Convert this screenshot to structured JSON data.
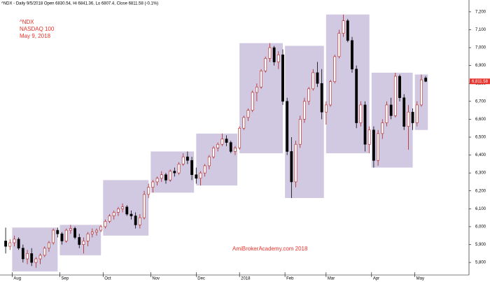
{
  "chart_data": {
    "type": "candlestick",
    "title": "^NDX - Daily 9/5/2018 Open 6830.54, Hi 6841.36, Lo 6807.4, Close 6811.58 (-0.1%)",
    "annotations": [
      "^NDX",
      "NASDAQ 100",
      "May 9, 2018"
    ],
    "watermark": "AmiBrokerAcademy.com  2018",
    "up_color": "#b22222",
    "down_color": "#000000",
    "range_color": "#c9bfdc",
    "x": [
      0,
      2,
      4,
      6,
      8,
      10,
      12,
      14,
      16,
      18,
      20,
      22,
      24,
      26,
      28,
      30,
      32,
      34,
      36,
      38,
      40,
      42,
      44,
      46,
      48,
      50,
      52,
      54,
      56,
      58,
      60,
      62,
      64,
      66,
      68,
      70,
      72,
      74,
      76,
      78,
      80,
      82,
      84,
      86,
      88,
      90,
      92,
      94,
      96,
      98,
      100,
      102,
      104,
      106,
      108,
      110,
      112,
      114,
      116,
      118,
      120,
      122,
      124,
      126,
      128,
      130,
      132,
      134,
      136,
      138,
      140,
      142,
      144,
      146,
      148,
      150,
      152,
      154,
      156,
      158,
      160,
      162,
      164,
      166,
      168,
      170,
      172,
      174,
      176,
      178,
      180,
      182,
      184,
      186,
      188,
      190,
      192,
      194
    ],
    "open": [
      5920,
      5890,
      5910,
      5930,
      5880,
      5820,
      5850,
      5800,
      5820,
      5840,
      5880,
      5910,
      5980,
      5960,
      5920,
      5980,
      5990,
      5940,
      5900,
      5920,
      5960,
      5970,
      5980,
      6000,
      6030,
      6060,
      6080,
      6100,
      6110,
      6070,
      6060,
      6010,
      6050,
      6180,
      6220,
      6250,
      6270,
      6290,
      6260,
      6310,
      6300,
      6350,
      6390,
      6370,
      6290,
      6270,
      6300,
      6340,
      6390,
      6440,
      6460,
      6490,
      6470,
      6420,
      6440,
      6550,
      6610,
      6650,
      6750,
      6780,
      6870,
      6940,
      7000,
      6920,
      6960,
      6700,
      6420,
      6250,
      6460,
      6600,
      6700,
      6770,
      6860,
      6800,
      6640,
      6680,
      6810,
      6950,
      7080,
      7150,
      7040,
      6880,
      6580,
      6680,
      6460,
      6540,
      6370,
      6520,
      6580,
      6680,
      6620,
      6840,
      6720,
      6560,
      6640,
      6580,
      6680,
      6830.54
    ],
    "high": [
      5995,
      5930,
      5950,
      5940,
      5900,
      5870,
      5880,
      5830,
      5850,
      5890,
      5920,
      5990,
      5995,
      5970,
      5990,
      6010,
      6000,
      5960,
      5940,
      5970,
      5990,
      5990,
      6010,
      6040,
      6070,
      6090,
      6110,
      6130,
      6120,
      6090,
      6080,
      6070,
      6200,
      6240,
      6260,
      6280,
      6310,
      6300,
      6320,
      6330,
      6360,
      6410,
      6420,
      6390,
      6330,
      6310,
      6350,
      6400,
      6450,
      6470,
      6520,
      6510,
      6480,
      6450,
      6560,
      6620,
      6660,
      6760,
      6800,
      6880,
      6950,
      7025,
      7010,
      6980,
      6990,
      6720,
      6500,
      6480,
      6620,
      6720,
      6780,
      6880,
      6920,
      6880,
      6700,
      6820,
      6960,
      7100,
      7185,
      7160,
      7060,
      6900,
      6700,
      6700,
      6560,
      6560,
      6540,
      6600,
      6700,
      6720,
      6860,
      6850,
      6740,
      6680,
      6660,
      6700,
      6850,
      6841.36
    ],
    "low": [
      5850,
      5870,
      5890,
      5870,
      5800,
      5790,
      5780,
      5770,
      5790,
      5830,
      5860,
      5900,
      5940,
      5900,
      5910,
      5960,
      5930,
      5880,
      5850,
      5890,
      5940,
      5950,
      5970,
      5990,
      6020,
      6040,
      6060,
      6080,
      6060,
      6040,
      5990,
      5990,
      6040,
      6160,
      6190,
      6230,
      6250,
      6240,
      6250,
      6280,
      6290,
      6340,
      6350,
      6260,
      6240,
      6230,
      6280,
      6320,
      6380,
      6420,
      6450,
      6450,
      6410,
      6400,
      6430,
      6540,
      6590,
      6640,
      6700,
      6770,
      6860,
      6920,
      6900,
      6880,
      6680,
      6400,
      6160,
      6220,
      6440,
      6580,
      6680,
      6760,
      6780,
      6600,
      6570,
      6670,
      6800,
      6940,
      7060,
      7030,
      6860,
      6550,
      6560,
      6420,
      6410,
      6330,
      6340,
      6490,
      6560,
      6600,
      6610,
      6700,
      6540,
      6430,
      6540,
      6560,
      6670,
      6807.4
    ],
    "close": [
      5890,
      5910,
      5930,
      5880,
      5820,
      5850,
      5800,
      5820,
      5840,
      5880,
      5910,
      5980,
      5960,
      5920,
      5980,
      5990,
      5940,
      5900,
      5920,
      5960,
      5970,
      5980,
      6000,
      6030,
      6060,
      6080,
      6100,
      6110,
      6070,
      6060,
      6010,
      6050,
      6180,
      6220,
      6250,
      6270,
      6290,
      6260,
      6310,
      6300,
      6350,
      6390,
      6370,
      6290,
      6270,
      6300,
      6340,
      6390,
      6440,
      6460,
      6490,
      6470,
      6420,
      6440,
      6550,
      6610,
      6650,
      6750,
      6780,
      6870,
      6940,
      7000,
      6920,
      6960,
      6700,
      6420,
      6250,
      6460,
      6600,
      6700,
      6770,
      6860,
      6800,
      6640,
      6680,
      6810,
      6950,
      7080,
      7150,
      7040,
      6880,
      6580,
      6680,
      6460,
      6540,
      6370,
      6520,
      6580,
      6680,
      6620,
      6840,
      6720,
      6560,
      6640,
      6580,
      6680,
      6820,
      6811.58
    ],
    "ranges": [
      {
        "x": [
          3,
          24
        ],
        "low": 5750,
        "high": 5995
      },
      {
        "x": [
          25,
          44
        ],
        "low": 5840,
        "high": 6010
      },
      {
        "x": [
          45,
          66
        ],
        "low": 5950,
        "high": 6260
      },
      {
        "x": [
          67,
          87
        ],
        "low": 6190,
        "high": 6420
      },
      {
        "x": [
          88,
          107
        ],
        "low": 6230,
        "high": 6520
      },
      {
        "x": [
          108,
          128
        ],
        "low": 6410,
        "high": 7025
      },
      {
        "x": [
          129,
          147
        ],
        "low": 6160,
        "high": 7010
      },
      {
        "x": [
          148,
          168
        ],
        "low": 6410,
        "high": 7185
      },
      {
        "x": [
          169,
          188
        ],
        "low": 6330,
        "high": 6860
      },
      {
        "x": [
          189,
          195
        ],
        "low": 6540,
        "high": 6850
      }
    ],
    "last_price": {
      "value": 6811.58,
      "label": "6,811.58"
    },
    "xlim": [
      -1,
      214
    ],
    "xticks": [
      {
        "value": 3,
        "label": "Aug"
      },
      {
        "value": 25,
        "label": "Sep"
      },
      {
        "value": 45,
        "label": "Oct"
      },
      {
        "value": 67,
        "label": "Nov"
      },
      {
        "value": 88,
        "label": "Dec"
      },
      {
        "value": 108,
        "label": "2018"
      },
      {
        "value": 129,
        "label": "Feb"
      },
      {
        "value": 148,
        "label": "Mar"
      },
      {
        "value": 169,
        "label": "Apr"
      },
      {
        "value": 189,
        "label": "May"
      }
    ],
    "ylim": [
      5730,
      7266
    ],
    "yticks": [
      {
        "value": 5800,
        "label": "5,800"
      },
      {
        "value": 5900,
        "label": "5,900"
      },
      {
        "value": 6000,
        "label": "6,000"
      },
      {
        "value": 6100,
        "label": "6,100"
      },
      {
        "value": 6200,
        "label": "6,200"
      },
      {
        "value": 6300,
        "label": "6,300"
      },
      {
        "value": 6400,
        "label": "6,400"
      },
      {
        "value": 6500,
        "label": "6,500"
      },
      {
        "value": 6600,
        "label": "6,600"
      },
      {
        "value": 6700,
        "label": "6,700"
      },
      {
        "value": 6800,
        "label": "6,800"
      },
      {
        "value": 6900,
        "label": "6,900"
      },
      {
        "value": 7000,
        "label": "7,000"
      },
      {
        "value": 7100,
        "label": "7,100"
      },
      {
        "value": 7200,
        "label": "7,200"
      }
    ]
  }
}
